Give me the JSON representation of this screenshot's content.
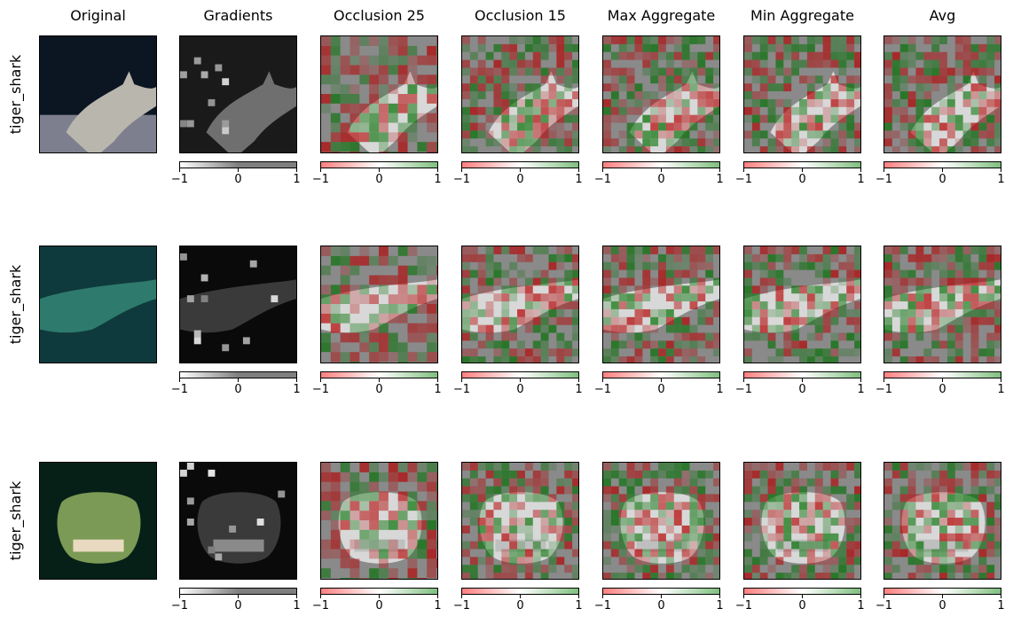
{
  "columns": [
    {
      "title": "Original",
      "kind": "original",
      "colorbar": false
    },
    {
      "title": "Gradients",
      "kind": "gradients",
      "colorbar": true,
      "cmap": "gray"
    },
    {
      "title": "Occlusion 25",
      "kind": "occlusion",
      "colorbar": true,
      "cmap": "red-white-green"
    },
    {
      "title": "Occlusion 15",
      "kind": "occlusion",
      "colorbar": true,
      "cmap": "red-white-green"
    },
    {
      "title": "Max Aggregate",
      "kind": "occlusion",
      "colorbar": true,
      "cmap": "red-white-green"
    },
    {
      "title": "Min Aggregate",
      "kind": "occlusion",
      "colorbar": true,
      "cmap": "red-white-green"
    },
    {
      "title": "Avg",
      "kind": "occlusion",
      "colorbar": true,
      "cmap": "red-white-green"
    }
  ],
  "rows": [
    {
      "label": "tiger_shark",
      "scene": "shark-side-view-dark-seafloor"
    },
    {
      "label": "tiger_shark",
      "scene": "shark-diagonal-teal-water"
    },
    {
      "label": "tiger_shark",
      "scene": "shark-frontal-teeth-green"
    }
  ],
  "colorbar": {
    "min": -1,
    "max": 1,
    "ticks": [
      "−1",
      "0",
      "1"
    ]
  },
  "colors": {
    "negative": "#ff7f7f",
    "neutral": "#ffffff",
    "positive": "#7fbf7f",
    "strong_negative": "#8b0000",
    "strong_positive": "#006400",
    "gray_mid": "#7f7f7f"
  }
}
